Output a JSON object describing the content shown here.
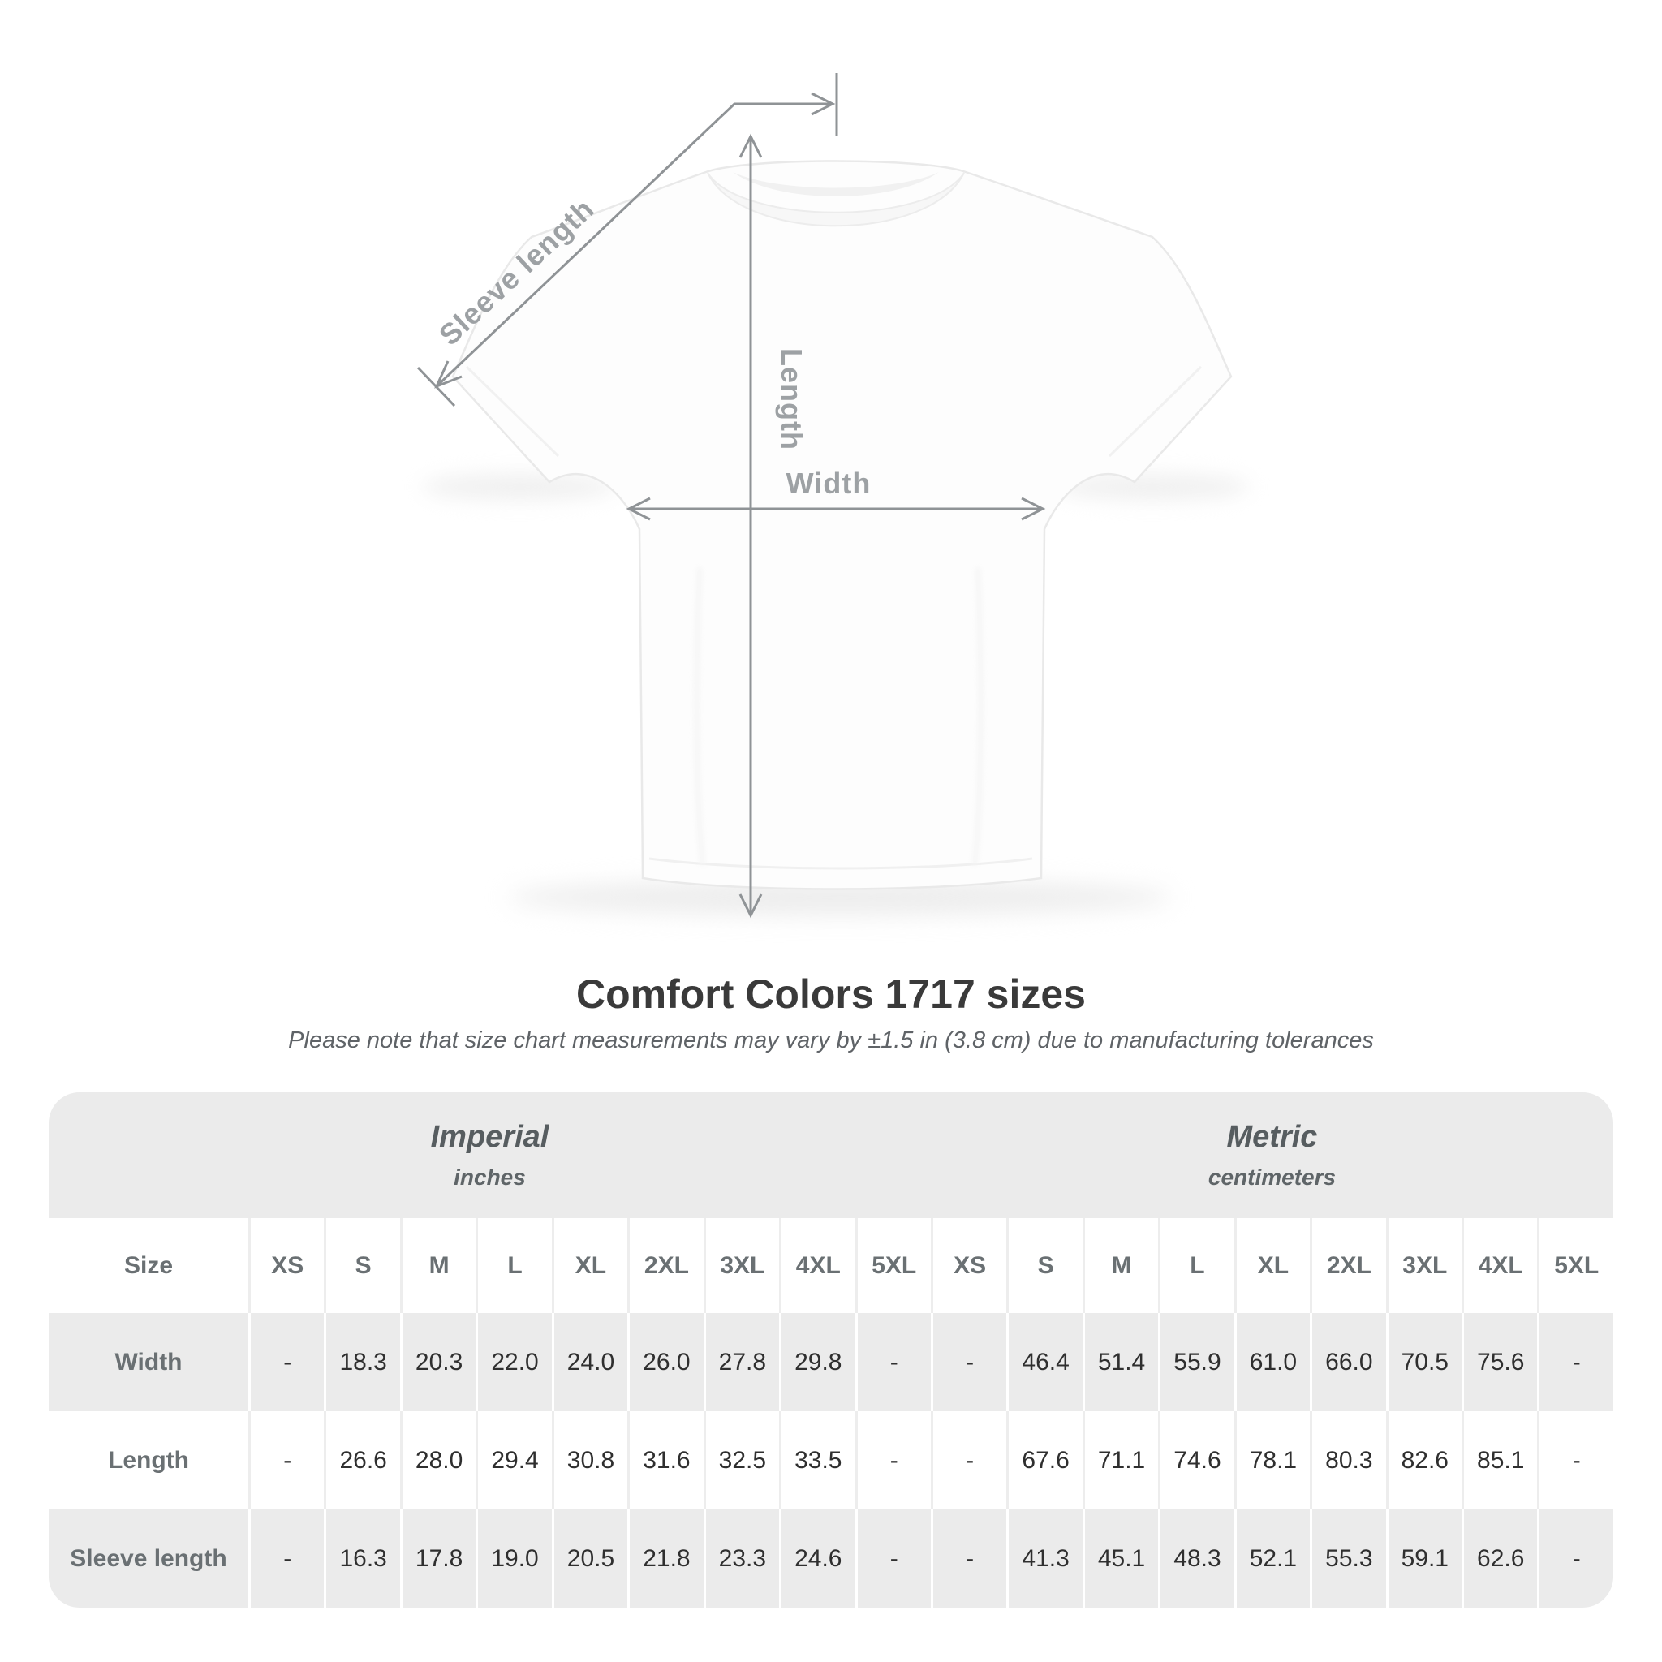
{
  "title": "Comfort Colors 1717 sizes",
  "subtitle": "Please note that size chart measurements may vary by ±1.5 in (3.8 cm) due to manufacturing tolerances",
  "diagram": {
    "sleeve_label": "Sleeve length",
    "length_label": "Length",
    "width_label": "Width"
  },
  "colors": {
    "table_band": "#ebebeb",
    "alt_row": "#ebebeb",
    "header_text": "#6a7073",
    "value_text": "#2f2f2f",
    "diagram_line": "#8f9396",
    "diagram_label": "#9da1a4",
    "title_text": "#3a3a3a",
    "subtitle_text": "#5f6367"
  },
  "chart_data": {
    "type": "table",
    "title": "Comfort Colors 1717 sizes",
    "groups": [
      {
        "label": "Imperial",
        "unit": "inches",
        "span": 10
      },
      {
        "label": "Metric",
        "unit": "centimeters",
        "span": 9
      }
    ],
    "size_column_header": "Size",
    "sizes": [
      "XS",
      "S",
      "M",
      "L",
      "XL",
      "2XL",
      "3XL",
      "4XL",
      "5XL"
    ],
    "rows": [
      {
        "label": "Width",
        "imperial": [
          "-",
          "18.3",
          "20.3",
          "22.0",
          "24.0",
          "26.0",
          "27.8",
          "29.8",
          "-"
        ],
        "metric": [
          "-",
          "46.4",
          "51.4",
          "55.9",
          "61.0",
          "66.0",
          "70.5",
          "75.6",
          "-"
        ]
      },
      {
        "label": "Length",
        "imperial": [
          "-",
          "26.6",
          "28.0",
          "29.4",
          "30.8",
          "31.6",
          "32.5",
          "33.5",
          "-"
        ],
        "metric": [
          "-",
          "67.6",
          "71.1",
          "74.6",
          "78.1",
          "80.3",
          "82.6",
          "85.1",
          "-"
        ]
      },
      {
        "label": "Sleeve length",
        "imperial": [
          "-",
          "16.3",
          "17.8",
          "19.0",
          "20.5",
          "21.8",
          "23.3",
          "24.6",
          "-"
        ],
        "metric": [
          "-",
          "41.3",
          "45.1",
          "48.3",
          "52.1",
          "55.3",
          "59.1",
          "62.6",
          "-"
        ]
      }
    ]
  }
}
